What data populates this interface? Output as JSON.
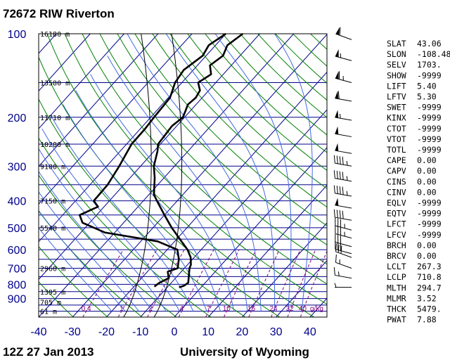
{
  "header": {
    "title": "72672 RIW Riverton",
    "date": "12Z 27 Jan 2013",
    "credit": "University of Wyoming"
  },
  "chart_data": {
    "type": "line",
    "chart_kind": "skew-t log-p sounding",
    "y_scale": "log",
    "yaxis": {
      "label": "",
      "ylim": [
        1050,
        100
      ],
      "ticks": [
        100,
        200,
        300,
        400,
        500,
        600,
        700,
        800,
        900
      ]
    },
    "xaxis": {
      "label": "",
      "xlim": [
        -40,
        45
      ],
      "ticks": [
        -40,
        -30,
        -20,
        -10,
        0,
        10,
        20,
        30,
        40
      ]
    },
    "height_labels": [
      {
        "p": 100,
        "label": "16180 m"
      },
      {
        "p": 150,
        "label": "13580 m"
      },
      {
        "p": 200,
        "label": "11710 m"
      },
      {
        "p": 250,
        "label": "10280 m"
      },
      {
        "p": 300,
        "label": "9100 m"
      },
      {
        "p": 400,
        "label": "7150 m"
      },
      {
        "p": 500,
        "label": "5540 m"
      },
      {
        "p": 700,
        "label": "2960 m"
      },
      {
        "p": 850,
        "label": "1395 m"
      },
      {
        "p": 925,
        "label": "705 m"
      },
      {
        "p": 1000,
        "label": "61 m"
      }
    ],
    "mixing_ratio_labels": [
      "0.4",
      "1",
      "2",
      "4",
      "7",
      "10",
      "16",
      "24",
      "32",
      "40",
      "g/kg"
    ],
    "series": [
      {
        "role": "temperature",
        "color": "#000000",
        "points": [
          [
            100,
            -55.0
          ],
          [
            110,
            -56.5
          ],
          [
            120,
            -55.0
          ],
          [
            130,
            -56.3
          ],
          [
            140,
            -53.6
          ],
          [
            150,
            -55.2
          ],
          [
            160,
            -52.6
          ],
          [
            170,
            -51.9
          ],
          [
            180,
            -52.4
          ],
          [
            190,
            -51.4
          ],
          [
            200,
            -50.5
          ],
          [
            215,
            -51.4
          ],
          [
            230,
            -51.1
          ],
          [
            250,
            -50.7
          ],
          [
            265,
            -49.0
          ],
          [
            300,
            -46.1
          ],
          [
            330,
            -42.8
          ],
          [
            380,
            -38.5
          ],
          [
            400,
            -36.0
          ],
          [
            450,
            -30.0
          ],
          [
            500,
            -24.5
          ],
          [
            560,
            -18.0
          ],
          [
            600,
            -14.0
          ],
          [
            640,
            -11.0
          ],
          [
            680,
            -9.0
          ],
          [
            700,
            -8.5
          ],
          [
            750,
            -6.5
          ],
          [
            790,
            -5.0
          ],
          [
            810,
            -5.5
          ],
          [
            820,
            -6.5
          ]
        ]
      },
      {
        "role": "dewpoint",
        "color": "#000000",
        "points": [
          [
            100,
            -60.0
          ],
          [
            110,
            -62.0
          ],
          [
            120,
            -61.0
          ],
          [
            135,
            -62.8
          ],
          [
            150,
            -62.0
          ],
          [
            170,
            -59.5
          ],
          [
            200,
            -59.0
          ],
          [
            220,
            -58.6
          ],
          [
            250,
            -58.5
          ],
          [
            300,
            -56.3
          ],
          [
            350,
            -54.8
          ],
          [
            400,
            -54.6
          ],
          [
            420,
            -51.8
          ],
          [
            450,
            -55.0
          ],
          [
            480,
            -52.1
          ],
          [
            520,
            -43.0
          ],
          [
            560,
            -25.0
          ],
          [
            600,
            -17.0
          ],
          [
            650,
            -14.0
          ],
          [
            700,
            -12.0
          ],
          [
            720,
            -14.0
          ],
          [
            760,
            -12.0
          ],
          [
            790,
            -13.5
          ],
          [
            815,
            -14.0
          ]
        ]
      }
    ],
    "wind_barbs": [
      {
        "p": 105,
        "dir": 290,
        "spd": 60
      },
      {
        "p": 125,
        "dir": 285,
        "spd": 55
      },
      {
        "p": 150,
        "dir": 285,
        "spd": 65
      },
      {
        "p": 175,
        "dir": 280,
        "spd": 60
      },
      {
        "p": 205,
        "dir": 280,
        "spd": 55
      },
      {
        "p": 235,
        "dir": 280,
        "spd": 50
      },
      {
        "p": 270,
        "dir": 280,
        "spd": 50
      },
      {
        "p": 300,
        "dir": 280,
        "spd": 45
      },
      {
        "p": 340,
        "dir": 280,
        "spd": 45
      },
      {
        "p": 385,
        "dir": 280,
        "spd": 45
      },
      {
        "p": 425,
        "dir": 280,
        "spd": 50
      },
      {
        "p": 470,
        "dir": 280,
        "spd": 40
      },
      {
        "p": 510,
        "dir": 285,
        "spd": 35
      },
      {
        "p": 545,
        "dir": 285,
        "spd": 35
      },
      {
        "p": 585,
        "dir": 285,
        "spd": 30
      },
      {
        "p": 620,
        "dir": 285,
        "spd": 30
      },
      {
        "p": 640,
        "dir": 290,
        "spd": 30
      },
      {
        "p": 700,
        "dir": 290,
        "spd": 15
      },
      {
        "p": 760,
        "dir": 280,
        "spd": 15
      },
      {
        "p": 820,
        "dir": 270,
        "spd": 5
      }
    ],
    "indices": [
      {
        "name": "SLAT",
        "value": "43.06"
      },
      {
        "name": "SLON",
        "value": "-108.48"
      },
      {
        "name": "SELV",
        "value": "1703."
      },
      {
        "name": "SHOW",
        "value": "-9999"
      },
      {
        "name": "LIFT",
        "value": "5.40"
      },
      {
        "name": "LFTV",
        "value": "5.30"
      },
      {
        "name": "SWET",
        "value": "-9999"
      },
      {
        "name": "KINX",
        "value": "-9999"
      },
      {
        "name": "CTOT",
        "value": "-9999"
      },
      {
        "name": "VTOT",
        "value": "-9999"
      },
      {
        "name": "TOTL",
        "value": "-9999"
      },
      {
        "name": "CAPE",
        "value": "0.00"
      },
      {
        "name": "CAPV",
        "value": "0.00"
      },
      {
        "name": "CINS",
        "value": "0.00"
      },
      {
        "name": "CINV",
        "value": "0.00"
      },
      {
        "name": "EQLV",
        "value": "-9999"
      },
      {
        "name": "EQTV",
        "value": "-9999"
      },
      {
        "name": "LFCT",
        "value": "-9999"
      },
      {
        "name": "LFCV",
        "value": "-9999"
      },
      {
        "name": "BRCH",
        "value": "0.00"
      },
      {
        "name": "BRCV",
        "value": "0.00"
      },
      {
        "name": "LCLT",
        "value": "267.3"
      },
      {
        "name": "LCLP",
        "value": "710.8"
      },
      {
        "name": "MLTH",
        "value": "294.7"
      },
      {
        "name": "MLMR",
        "value": "3.52"
      },
      {
        "name": "THCK",
        "value": "5479."
      },
      {
        "name": "PWAT",
        "value": "7.88"
      }
    ],
    "colors": {
      "isobar": "#00008b",
      "isotherm": "#00008b",
      "dry_adiabat": "#008000",
      "moist_adiabat": "#4169e1",
      "mixing_ratio": "#800080",
      "sounding": "#000000",
      "reference_curve": "#000000"
    }
  }
}
